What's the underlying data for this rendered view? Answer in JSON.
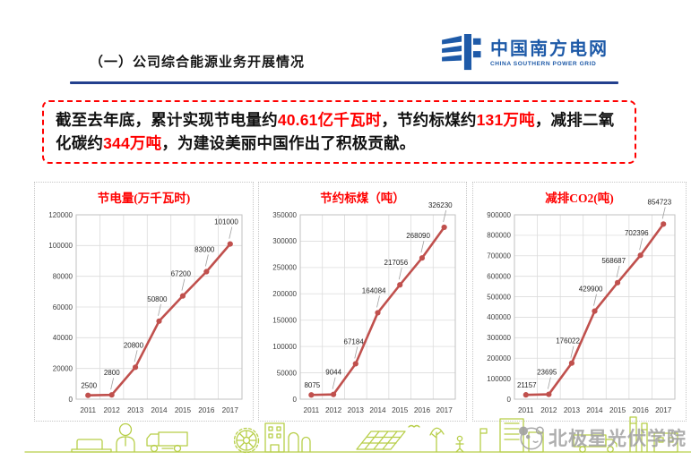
{
  "header": {
    "title": "（一）公司综合能源业务开展情况"
  },
  "logo": {
    "name_cn": "中国南方电网",
    "name_en": "CHINA SOUTHERN POWER GRID",
    "brand_color": "#1e5aa8"
  },
  "summary": {
    "segments": [
      {
        "text": "截至去年底，累计实现节电量约",
        "highlight": false
      },
      {
        "text": "40.61亿千瓦时",
        "highlight": true
      },
      {
        "text": "，节约标煤约",
        "highlight": false
      },
      {
        "text": "131万吨",
        "highlight": true
      },
      {
        "text": "，减排二氧化碳约",
        "highlight": false
      },
      {
        "text": "344万吨",
        "highlight": true
      },
      {
        "text": "，为建设美丽中国作出了积极贡献。",
        "highlight": false
      }
    ],
    "border_color": "#ff0000",
    "highlight_color": "#ff0000"
  },
  "colors": {
    "line_red": "#c0504d",
    "chart_title_red": "#ff0000",
    "underline_blue": "#23408e",
    "grid_gray": "#d9d9d9",
    "axis_text": "#3f3f3f",
    "illustration_green": "#b4cc3f",
    "watermark_gray": "#a0a0a0"
  },
  "chart_data": [
    {
      "type": "line",
      "title": "节电量(万千瓦时)",
      "categories": [
        "2011",
        "2012",
        "2013",
        "2014",
        "2015",
        "2016",
        "2017"
      ],
      "values": [
        2500,
        2800,
        20800,
        50800,
        67200,
        83000,
        101000
      ],
      "ylim": [
        0,
        120000
      ],
      "yticks": [
        0,
        20000,
        40000,
        60000,
        80000,
        100000,
        120000
      ],
      "grid": true,
      "legend": "none",
      "line_color": "#c0504d",
      "title_color": "#ff0000"
    },
    {
      "type": "line",
      "title": "节约标煤（吨）",
      "categories": [
        "2011",
        "2012",
        "2013",
        "2014",
        "2015",
        "2016",
        "2017"
      ],
      "values": [
        8075,
        9044,
        67184,
        164084,
        217056,
        268090,
        326230
      ],
      "ylim": [
        0,
        350000
      ],
      "yticks": [
        0,
        50000,
        100000,
        150000,
        200000,
        250000,
        300000,
        350000
      ],
      "grid": true,
      "legend": "none",
      "line_color": "#c0504d",
      "title_color": "#ff0000"
    },
    {
      "type": "line",
      "title": "减排CO2(吨)",
      "categories": [
        "2011",
        "2012",
        "2013",
        "2014",
        "2015",
        "2016",
        "2017"
      ],
      "values": [
        21157,
        23695,
        176022,
        429900,
        568687,
        702396,
        854723
      ],
      "ylim": [
        0,
        900000
      ],
      "yticks": [
        0,
        100000,
        200000,
        300000,
        400000,
        500000,
        600000,
        700000,
        800000,
        900000
      ],
      "grid": true,
      "legend": "none",
      "line_color": "#c0504d",
      "title_color": "#ff0000"
    }
  ],
  "watermark": {
    "text": "北极星光伏学院"
  }
}
